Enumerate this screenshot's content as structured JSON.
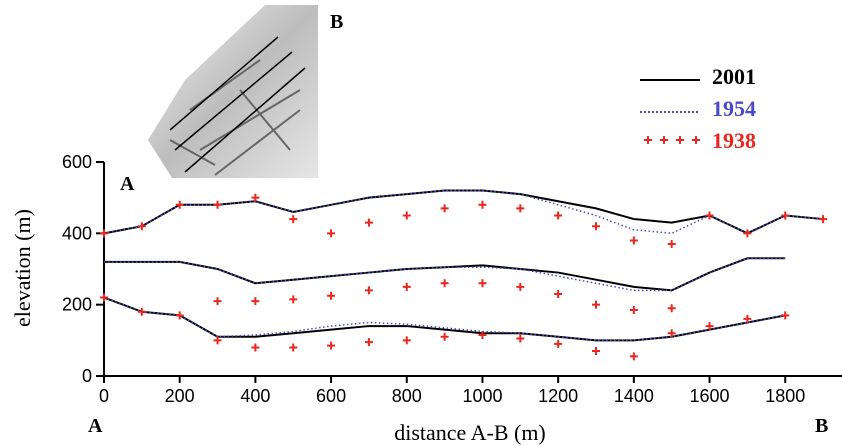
{
  "chart_data": {
    "type": "line",
    "xlabel": "distance A-B (m)",
    "ylabel": "elevation (m)",
    "annotations": [
      "A",
      "B",
      "A",
      "B"
    ],
    "x": [
      0,
      100,
      200,
      300,
      400,
      500,
      600,
      700,
      800,
      900,
      1000,
      1100,
      1200,
      1300,
      1400,
      1500,
      1600,
      1700,
      1800,
      1900
    ],
    "xlim": [
      0,
      1950
    ],
    "xticks": [
      0,
      200,
      400,
      600,
      800,
      1000,
      1200,
      1400,
      1600,
      1800
    ],
    "ylim": [
      0,
      600
    ],
    "yticks": [
      0,
      200,
      400,
      600
    ],
    "series": [
      {
        "name": "2001",
        "color": "#000000",
        "style": "solid",
        "values": [
          [
            400,
            420,
            480,
            480,
            490,
            460,
            480,
            500,
            510,
            520,
            520,
            510,
            490,
            470,
            440,
            430,
            450,
            400,
            450,
            440
          ],
          [
            320,
            320,
            320,
            300,
            260,
            270,
            280,
            290,
            300,
            305,
            310,
            300,
            290,
            270,
            250,
            240,
            290,
            330,
            330,
            null
          ],
          [
            220,
            180,
            170,
            110,
            110,
            120,
            130,
            140,
            140,
            130,
            120,
            120,
            110,
            100,
            100,
            110,
            130,
            150,
            170,
            null
          ]
        ]
      },
      {
        "name": "1954",
        "color": "#4a4ac8",
        "style": "dotted",
        "values": [
          [
            400,
            420,
            480,
            480,
            490,
            460,
            480,
            500,
            510,
            520,
            520,
            510,
            480,
            450,
            410,
            400,
            450,
            400,
            450,
            440
          ],
          [
            320,
            320,
            320,
            300,
            260,
            270,
            280,
            290,
            300,
            305,
            305,
            300,
            280,
            260,
            240,
            240,
            290,
            330,
            330,
            null
          ],
          [
            220,
            180,
            170,
            110,
            115,
            125,
            140,
            150,
            145,
            135,
            125,
            120,
            110,
            100,
            100,
            110,
            130,
            150,
            170,
            null
          ]
        ]
      },
      {
        "name": "1938",
        "color": "#e8281e",
        "style": "plus",
        "values": [
          [
            400,
            420,
            480,
            480,
            500,
            440,
            400,
            430,
            450,
            470,
            480,
            470,
            450,
            420,
            380,
            370,
            450,
            400,
            450,
            440
          ],
          [
            null,
            null,
            null,
            210,
            210,
            215,
            225,
            240,
            250,
            260,
            260,
            250,
            230,
            200,
            185,
            190,
            null,
            null,
            null,
            null
          ],
          [
            220,
            180,
            170,
            100,
            80,
            80,
            85,
            95,
            100,
            110,
            115,
            105,
            90,
            70,
            55,
            120,
            140,
            160,
            170,
            null
          ]
        ]
      }
    ]
  }
}
